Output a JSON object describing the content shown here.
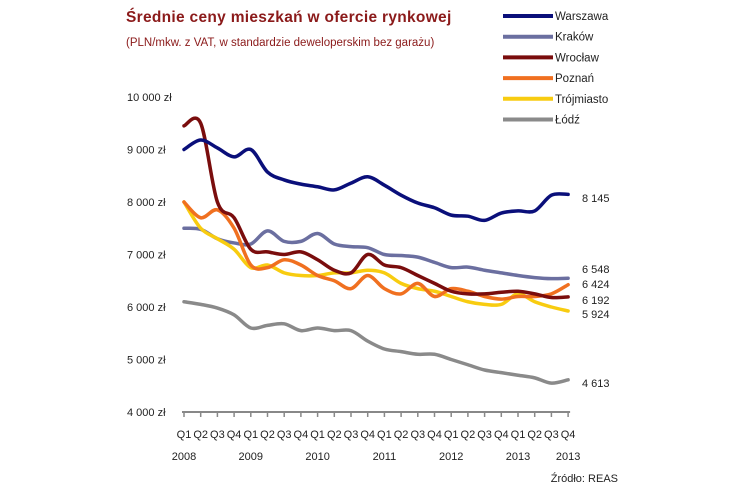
{
  "chart_data": {
    "type": "line",
    "title": "Średnie ceny mieszkań w ofercie rynkowej",
    "subtitle": "(PLN/mkw. z VAT, w standardzie deweloperskim bez garażu)",
    "source": "Źródło: REAS",
    "x_quarters": [
      "Q1",
      "Q2",
      "Q3",
      "Q4",
      "Q1",
      "Q2",
      "Q3",
      "Q4",
      "Q1",
      "Q2",
      "Q3",
      "Q4",
      "Q1",
      "Q2",
      "Q3",
      "Q4",
      "Q1",
      "Q2",
      "Q3",
      "Q4",
      "Q1",
      "Q2",
      "Q3",
      "Q4"
    ],
    "x_years": [
      {
        "label": "2008",
        "index": 0
      },
      {
        "label": "2009",
        "index": 4
      },
      {
        "label": "2010",
        "index": 8
      },
      {
        "label": "2011",
        "index": 12
      },
      {
        "label": "2012",
        "index": 16
      },
      {
        "label": "2013",
        "index": 20
      },
      {
        "label": "2013",
        "index": 23
      }
    ],
    "ylim": [
      4000,
      10000
    ],
    "y_ticks": [
      {
        "value": 4000,
        "label": "4 000 zł"
      },
      {
        "value": 5000,
        "label": "5 000 zł"
      },
      {
        "value": 6000,
        "label": "6 000 zł"
      },
      {
        "value": 7000,
        "label": "7 000 zł"
      },
      {
        "value": 8000,
        "label": "8 000 zł"
      },
      {
        "value": 9000,
        "label": "9 000 zł"
      },
      {
        "value": 10000,
        "label": "10 000 zł"
      }
    ],
    "grid": false,
    "legend_position": "top-right",
    "series": [
      {
        "name": "Warszawa",
        "color": "#0a0f7a",
        "end_label": "8 145",
        "values": [
          9000,
          9180,
          9030,
          8860,
          9000,
          8570,
          8420,
          8340,
          8290,
          8230,
          8360,
          8480,
          8320,
          8130,
          7980,
          7890,
          7750,
          7730,
          7650,
          7790,
          7830,
          7830,
          8130,
          8145
        ]
      },
      {
        "name": "Kraków",
        "color": "#6b6fa0",
        "end_label": "6 548",
        "values": [
          7500,
          7480,
          7300,
          7220,
          7200,
          7450,
          7250,
          7250,
          7400,
          7200,
          7150,
          7130,
          7000,
          6980,
          6950,
          6850,
          6750,
          6760,
          6700,
          6650,
          6600,
          6560,
          6540,
          6548
        ]
      },
      {
        "name": "Wrocław",
        "color": "#7a0d0d",
        "end_label": "6 192",
        "values": [
          9450,
          9500,
          8000,
          7700,
          7100,
          7050,
          7000,
          7050,
          6900,
          6700,
          6650,
          7000,
          6800,
          6750,
          6600,
          6450,
          6300,
          6250,
          6250,
          6280,
          6300,
          6250,
          6180,
          6192
        ]
      },
      {
        "name": "Poznań",
        "color": "#f07020",
        "end_label": "6 424",
        "values": [
          8000,
          7700,
          7850,
          7500,
          6800,
          6750,
          6900,
          6800,
          6600,
          6500,
          6350,
          6600,
          6350,
          6250,
          6450,
          6200,
          6350,
          6300,
          6200,
          6150,
          6200,
          6200,
          6250,
          6424
        ]
      },
      {
        "name": "Trójmiasto",
        "color": "#f8cc10",
        "end_label": "5 924",
        "values": [
          8000,
          7500,
          7300,
          7100,
          6750,
          6800,
          6650,
          6600,
          6600,
          6650,
          6650,
          6700,
          6650,
          6450,
          6350,
          6300,
          6200,
          6100,
          6050,
          6050,
          6250,
          6100,
          6000,
          5924
        ]
      },
      {
        "name": "Łódź",
        "color": "#8a8a8a",
        "end_label": "4 613",
        "values": [
          6100,
          6050,
          5980,
          5850,
          5600,
          5650,
          5680,
          5550,
          5600,
          5550,
          5550,
          5350,
          5200,
          5150,
          5100,
          5100,
          5000,
          4900,
          4800,
          4750,
          4700,
          4650,
          4550,
          4613
        ]
      }
    ]
  }
}
